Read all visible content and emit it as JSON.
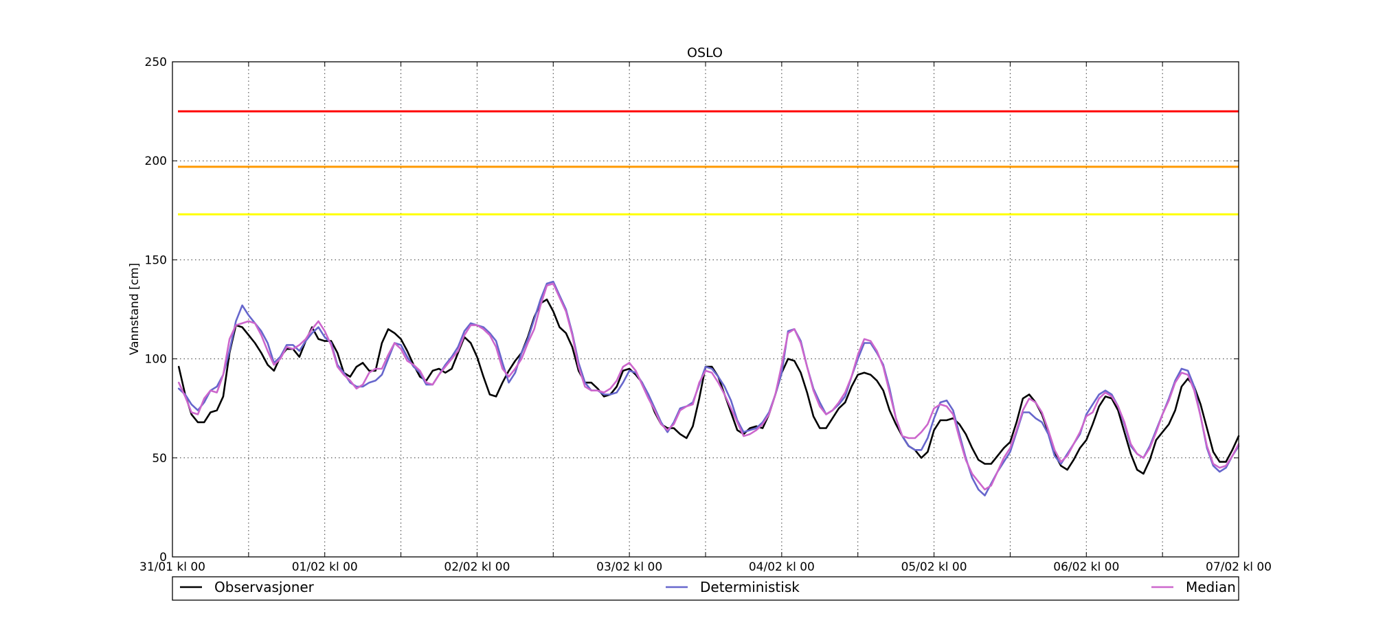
{
  "chart_data": {
    "type": "line",
    "title": "OSLO",
    "xlabel": "",
    "ylabel": "Vannstand [cm]",
    "ylim": [
      0,
      250
    ],
    "yticks": [
      0,
      50,
      100,
      150,
      200,
      250
    ],
    "xlim_hours": [
      0,
      168
    ],
    "xticks": [
      {
        "label": "31/01 kl 00",
        "hour": 0
      },
      {
        "label": "",
        "hour": 12
      },
      {
        "label": "01/02 kl 00",
        "hour": 24
      },
      {
        "label": "",
        "hour": 36
      },
      {
        "label": "02/02 kl 00",
        "hour": 48
      },
      {
        "label": "",
        "hour": 60
      },
      {
        "label": "03/02 kl 00",
        "hour": 72
      },
      {
        "label": "",
        "hour": 84
      },
      {
        "label": "04/02 kl 00",
        "hour": 96
      },
      {
        "label": "",
        "hour": 108
      },
      {
        "label": "05/02 kl 00",
        "hour": 120
      },
      {
        "label": "",
        "hour": 132
      },
      {
        "label": "06/02 kl 00",
        "hour": 144
      },
      {
        "label": "",
        "hour": 156
      },
      {
        "label": "07/02 kl 00",
        "hour": 168
      }
    ],
    "grid": true,
    "legend_placement": "bottom",
    "thresholds": [
      {
        "value": 225,
        "color": "#ff0000"
      },
      {
        "value": 197,
        "color": "#ff9900"
      },
      {
        "value": 173,
        "color": "#ffff00"
      }
    ],
    "series": [
      {
        "name": "Observasjoner",
        "color": "#000000",
        "x": [
          1,
          2,
          3,
          4,
          5,
          6,
          7,
          8,
          9,
          10,
          11,
          12,
          13,
          14,
          15,
          16,
          17,
          18,
          19,
          20,
          21,
          22,
          23,
          24,
          25,
          26,
          27,
          28,
          29,
          30,
          31,
          32,
          33,
          34,
          35,
          36,
          37,
          38,
          39,
          40,
          41,
          42,
          43,
          44,
          45,
          46,
          47,
          48,
          49,
          50,
          51,
          52,
          53,
          54,
          55,
          56,
          57,
          58,
          59,
          60,
          61,
          62,
          63,
          64,
          65,
          66,
          67,
          68,
          69,
          70,
          71,
          72,
          73,
          74,
          75,
          76,
          77,
          78,
          79,
          80,
          81,
          82,
          83,
          84,
          85,
          86,
          87,
          88,
          89,
          90,
          91,
          92,
          93,
          94,
          95,
          96,
          97,
          98,
          99,
          100,
          101,
          102,
          103,
          104,
          105,
          106,
          107,
          108,
          109,
          110,
          111,
          112,
          113,
          114,
          115,
          116,
          117,
          118,
          119,
          120,
          121,
          122,
          123,
          124,
          125,
          126,
          127,
          128,
          129,
          130,
          131,
          132,
          133,
          134,
          135,
          136,
          137,
          138,
          139,
          140,
          141,
          142,
          143,
          144,
          145,
          146,
          147,
          148,
          149,
          150,
          151,
          152,
          153,
          154,
          155,
          156,
          157,
          158,
          159,
          160,
          161,
          162,
          163,
          164,
          165,
          166,
          167,
          168
        ],
        "y": [
          96,
          82,
          72,
          68,
          68,
          73,
          74,
          81,
          103,
          117,
          116,
          112,
          108,
          103,
          97,
          94,
          101,
          105,
          105,
          101,
          109,
          116,
          110,
          109,
          109,
          103,
          93,
          91,
          96,
          98,
          94,
          94,
          108,
          115,
          113,
          110,
          104,
          97,
          91,
          89,
          94,
          95,
          93,
          95,
          103,
          111,
          108,
          101,
          91,
          82,
          81,
          88,
          94,
          99,
          103,
          111,
          121,
          128,
          130,
          124,
          116,
          113,
          106,
          94,
          88,
          88,
          85,
          81,
          82,
          86,
          94,
          95,
          92,
          88,
          81,
          73,
          67,
          65,
          65,
          62,
          60,
          66,
          80,
          96,
          96,
          91,
          82,
          73,
          64,
          62,
          65,
          66,
          65,
          72,
          82,
          93,
          100,
          99,
          93,
          83,
          71,
          65,
          65,
          70,
          75,
          78,
          86,
          92,
          93,
          92,
          89,
          84,
          74,
          67,
          61,
          56,
          54,
          50,
          53,
          64,
          69,
          69,
          70,
          67,
          62,
          55,
          49,
          47,
          47,
          51,
          55,
          58,
          68,
          80,
          82,
          78,
          72,
          63,
          52,
          46,
          44,
          49,
          55,
          59,
          67,
          76,
          81,
          80,
          74,
          63,
          52,
          44,
          42,
          49,
          59,
          63,
          67,
          74,
          86,
          90,
          86,
          77,
          65,
          53,
          48,
          48,
          54,
          61
        ]
      },
      {
        "name": "Deterministisk",
        "color": "#6666cc",
        "x": [
          1,
          2,
          3,
          4,
          5,
          6,
          7,
          8,
          9,
          10,
          11,
          12,
          13,
          14,
          15,
          16,
          17,
          18,
          19,
          20,
          21,
          22,
          23,
          24,
          25,
          26,
          27,
          28,
          29,
          30,
          31,
          32,
          33,
          34,
          35,
          36,
          37,
          38,
          39,
          40,
          41,
          42,
          43,
          44,
          45,
          46,
          47,
          48,
          49,
          50,
          51,
          52,
          53,
          54,
          55,
          56,
          57,
          58,
          59,
          60,
          61,
          62,
          63,
          64,
          65,
          66,
          67,
          68,
          69,
          70,
          71,
          72,
          73,
          74,
          75,
          76,
          77,
          78,
          79,
          80,
          81,
          82,
          83,
          84,
          85,
          86,
          87,
          88,
          89,
          90,
          91,
          92,
          93,
          94,
          95,
          96,
          97,
          98,
          99,
          100,
          101,
          102,
          103,
          104,
          105,
          106,
          107,
          108,
          109,
          110,
          111,
          112,
          113,
          114,
          115,
          116,
          117,
          118,
          119,
          120,
          121,
          122,
          123,
          124,
          125,
          126,
          127,
          128,
          129,
          130,
          131,
          132,
          133,
          134,
          135,
          136,
          137,
          138,
          139,
          140,
          141,
          142,
          143,
          144,
          145,
          146,
          147,
          148,
          149,
          150,
          151,
          152,
          153,
          154,
          155,
          156,
          157,
          158,
          159,
          160,
          161,
          162,
          163,
          164,
          165,
          166,
          167,
          168
        ],
        "y": [
          85,
          82,
          77,
          74,
          78,
          84,
          86,
          92,
          104,
          119,
          127,
          122,
          118,
          114,
          108,
          98,
          101,
          107,
          107,
          104,
          109,
          113,
          116,
          111,
          108,
          97,
          93,
          88,
          86,
          86,
          88,
          89,
          92,
          100,
          108,
          107,
          101,
          96,
          93,
          87,
          87,
          92,
          97,
          101,
          106,
          114,
          118,
          117,
          116,
          113,
          109,
          98,
          88,
          93,
          103,
          110,
          120,
          130,
          138,
          139,
          132,
          125,
          113,
          98,
          88,
          84,
          84,
          82,
          82,
          83,
          88,
          94,
          93,
          88,
          82,
          75,
          68,
          63,
          68,
          75,
          76,
          78,
          87,
          96,
          95,
          91,
          86,
          79,
          69,
          63,
          64,
          65,
          68,
          73,
          82,
          93,
          114,
          115,
          109,
          96,
          85,
          78,
          72,
          74,
          77,
          81,
          91,
          100,
          108,
          108,
          103,
          97,
          85,
          70,
          61,
          56,
          54,
          54,
          60,
          70,
          78,
          79,
          74,
          62,
          50,
          40,
          34,
          31,
          37,
          43,
          48,
          53,
          63,
          73,
          73,
          70,
          68,
          62,
          51,
          47,
          52,
          57,
          62,
          72,
          77,
          82,
          84,
          82,
          76,
          67,
          56,
          52,
          50,
          56,
          64,
          72,
          80,
          89,
          95,
          94,
          86,
          71,
          55,
          46,
          43,
          45,
          51,
          56
        ]
      },
      {
        "name": "Median",
        "color": "#cc66cc",
        "x": [
          1,
          2,
          3,
          4,
          5,
          6,
          7,
          8,
          9,
          10,
          11,
          12,
          13,
          14,
          15,
          16,
          17,
          18,
          19,
          20,
          21,
          22,
          23,
          24,
          25,
          26,
          27,
          28,
          29,
          30,
          31,
          32,
          33,
          34,
          35,
          36,
          37,
          38,
          39,
          40,
          41,
          42,
          43,
          44,
          45,
          46,
          47,
          48,
          49,
          50,
          51,
          52,
          53,
          54,
          55,
          56,
          57,
          58,
          59,
          60,
          61,
          62,
          63,
          64,
          65,
          66,
          67,
          68,
          69,
          70,
          71,
          72,
          73,
          74,
          75,
          76,
          77,
          78,
          79,
          80,
          81,
          82,
          83,
          84,
          85,
          86,
          87,
          88,
          89,
          90,
          91,
          92,
          93,
          94,
          95,
          96,
          97,
          98,
          99,
          100,
          101,
          102,
          103,
          104,
          105,
          106,
          107,
          108,
          109,
          110,
          111,
          112,
          113,
          114,
          115,
          116,
          117,
          118,
          119,
          120,
          121,
          122,
          123,
          124,
          125,
          126,
          127,
          128,
          129,
          130,
          131,
          132,
          133,
          134,
          135,
          136,
          137,
          138,
          139,
          140,
          141,
          142,
          143,
          144,
          145,
          146,
          147,
          148,
          149,
          150,
          151,
          152,
          153,
          154,
          155,
          156,
          157,
          158,
          159,
          160,
          161,
          162,
          163,
          164,
          165,
          166,
          167,
          168
        ],
        "y": [
          88,
          81,
          73,
          72,
          80,
          84,
          83,
          92,
          110,
          117,
          118,
          119,
          118,
          112,
          104,
          97,
          100,
          106,
          105,
          107,
          110,
          115,
          119,
          114,
          107,
          96,
          92,
          89,
          85,
          87,
          93,
          95,
          95,
          102,
          108,
          105,
          99,
          97,
          94,
          88,
          87,
          92,
          96,
          100,
          104,
          112,
          117,
          117,
          115,
          112,
          106,
          95,
          91,
          95,
          100,
          108,
          115,
          127,
          137,
          138,
          131,
          124,
          112,
          96,
          86,
          84,
          84,
          83,
          85,
          89,
          96,
          98,
          94,
          87,
          80,
          74,
          67,
          64,
          67,
          74,
          76,
          77,
          88,
          94,
          93,
          88,
          82,
          75,
          68,
          61,
          62,
          64,
          67,
          72,
          82,
          97,
          113,
          115,
          108,
          96,
          84,
          76,
          72,
          74,
          78,
          83,
          91,
          102,
          110,
          109,
          104,
          96,
          83,
          70,
          61,
          60,
          60,
          63,
          67,
          75,
          77,
          76,
          72,
          60,
          49,
          42,
          38,
          34,
          36,
          43,
          50,
          55,
          64,
          74,
          80,
          78,
          73,
          64,
          54,
          48,
          51,
          57,
          63,
          71,
          73,
          80,
          83,
          81,
          76,
          68,
          57,
          52,
          50,
          55,
          63,
          72,
          79,
          88,
          93,
          92,
          84,
          71,
          56,
          47,
          45,
          46,
          51,
          57
        ]
      }
    ]
  }
}
